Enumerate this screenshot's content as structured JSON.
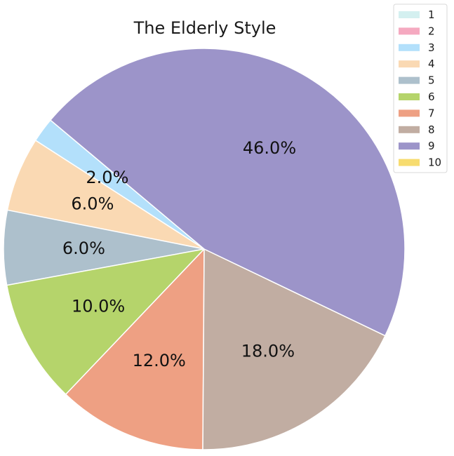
{
  "chart_data": {
    "type": "pie",
    "title": "The Elderly Style",
    "categories": [
      "1",
      "2",
      "3",
      "4",
      "5",
      "6",
      "7",
      "8",
      "9",
      "10"
    ],
    "values": [
      0,
      0,
      2,
      6,
      6,
      10,
      12,
      18,
      46,
      0
    ],
    "labels": [
      "",
      "",
      "2.0%",
      "6.0%",
      "6.0%",
      "10.0%",
      "12.0%",
      "18.0%",
      "46.0%",
      ""
    ],
    "colors": [
      "#d4f0f0",
      "#f5a9c0",
      "#b3e0fb",
      "#fad9b3",
      "#adc0cc",
      "#b5d46b",
      "#eea083",
      "#c1ada2",
      "#9c94c9",
      "#f7dc6f"
    ],
    "legend_placement": "top-right",
    "start_angle_deg": 140,
    "direction": "counterclockwise"
  }
}
